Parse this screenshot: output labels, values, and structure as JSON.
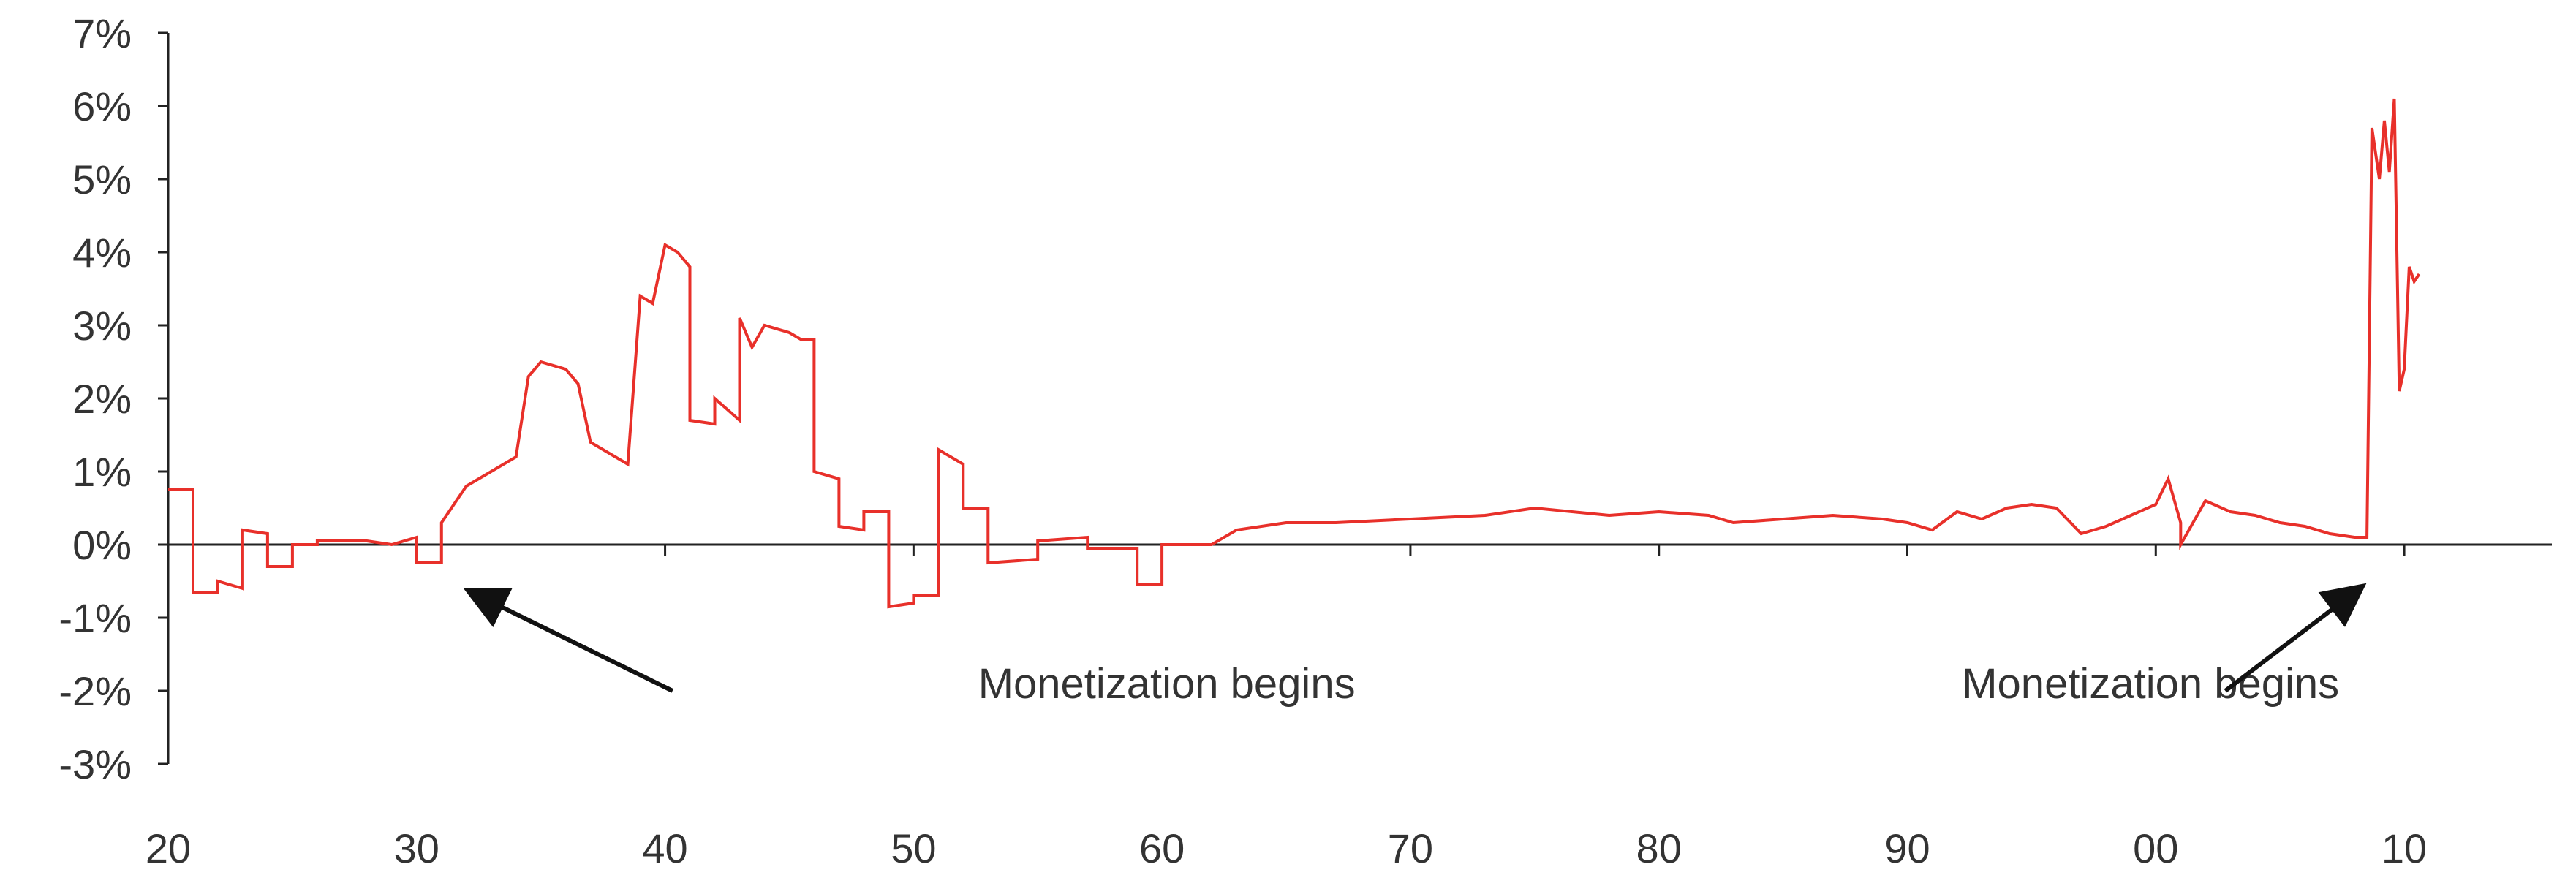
{
  "chart_data": {
    "type": "line",
    "title": "",
    "xlabel": "",
    "ylabel": "",
    "x_tick_labels": [
      "20",
      "30",
      "40",
      "50",
      "60",
      "70",
      "80",
      "90",
      "00",
      "10"
    ],
    "x_tick_years": [
      1920,
      1930,
      1940,
      1950,
      1960,
      1970,
      1980,
      1990,
      2000,
      2010
    ],
    "xlim": [
      1920,
      2013
    ],
    "y_tick_labels": [
      "7%",
      "6%",
      "5%",
      "4%",
      "3%",
      "2%",
      "1%",
      "0%",
      "-1%",
      "-2%",
      "-3%"
    ],
    "y_tick_values": [
      7,
      6,
      5,
      4,
      3,
      2,
      1,
      0,
      -1,
      -2,
      -3
    ],
    "ylim": [
      -3,
      7
    ],
    "grid": false,
    "legend": "none",
    "line_color": "#e8302a",
    "series": [
      {
        "x": [
          1920,
          1921,
          1921,
          1922,
          1922,
          1923,
          1923,
          1924,
          1924,
          1925,
          1925,
          1926,
          1926,
          1928,
          1929,
          1930,
          1930,
          1931,
          1931,
          1932,
          1933,
          1934,
          1934.5,
          1935,
          1936,
          1936.5,
          1937,
          1938,
          1938.5,
          1939,
          1939.5,
          1940,
          1940.5,
          1941,
          1941,
          1942,
          1942,
          1943,
          1943,
          1943.5,
          1944,
          1945,
          1945.5,
          1946,
          1946,
          1947,
          1947,
          1948,
          1948,
          1949,
          1949,
          1950,
          1950,
          1951,
          1951,
          1952,
          1952,
          1953,
          1953,
          1955,
          1955,
          1957,
          1957,
          1959,
          1959,
          1960,
          1960,
          1962,
          1963,
          1965,
          1967,
          1970,
          1973,
          1975,
          1978,
          1980,
          1982,
          1983,
          1985,
          1987,
          1989,
          1990,
          1991,
          1992,
          1993,
          1994,
          1995,
          1996,
          1997,
          1998,
          1999,
          2000,
          2000.5,
          2001,
          2001,
          2002,
          2003,
          2004,
          2005,
          2006,
          2007,
          2008,
          2008.5,
          2008.7,
          2009,
          2009.2,
          2009.4,
          2009.6,
          2009.8,
          2010,
          2010.2,
          2010.4,
          2010.6
        ],
        "y": [
          0.75,
          0.75,
          -0.65,
          -0.65,
          -0.5,
          -0.6,
          0.2,
          0.15,
          -0.3,
          -0.3,
          0.0,
          0.0,
          0.05,
          0.05,
          0.0,
          0.1,
          -0.25,
          -0.25,
          0.3,
          0.8,
          1.0,
          1.2,
          2.3,
          2.5,
          2.4,
          2.2,
          1.4,
          1.2,
          1.1,
          3.4,
          3.3,
          4.1,
          4.0,
          3.8,
          1.7,
          1.65,
          2.0,
          1.7,
          3.1,
          2.7,
          3.0,
          2.9,
          2.8,
          2.8,
          1.0,
          0.9,
          0.25,
          0.2,
          0.45,
          0.45,
          -0.85,
          -0.8,
          -0.7,
          -0.7,
          1.3,
          1.1,
          0.5,
          0.5,
          -0.25,
          -0.2,
          0.05,
          0.1,
          -0.05,
          -0.05,
          -0.55,
          -0.55,
          0.0,
          0.0,
          0.2,
          0.3,
          0.3,
          0.35,
          0.4,
          0.5,
          0.4,
          0.45,
          0.4,
          0.3,
          0.35,
          0.4,
          0.35,
          0.3,
          0.2,
          0.45,
          0.35,
          0.5,
          0.55,
          0.5,
          0.15,
          0.25,
          0.4,
          0.55,
          0.9,
          0.3,
          0.0,
          0.6,
          0.45,
          0.4,
          0.3,
          0.25,
          0.15,
          0.1,
          0.1,
          5.7,
          5.0,
          5.8,
          5.1,
          6.1,
          2.1,
          2.4,
          3.8,
          3.6,
          3.7
        ]
      }
    ],
    "annotations": [
      {
        "text": "Monetization begins",
        "text_year": 1952.6,
        "text_value": -2.1,
        "arrow_from": [
          1940.3,
          -2.0
        ],
        "arrow_to": [
          1932.2,
          -0.65
        ]
      },
      {
        "text": "Monetization begins",
        "text_year": 1992.2,
        "text_value": -2.1,
        "arrow_from": [
          2002.8,
          -2.0
        ],
        "arrow_to": [
          2008.2,
          -0.6
        ]
      }
    ]
  }
}
